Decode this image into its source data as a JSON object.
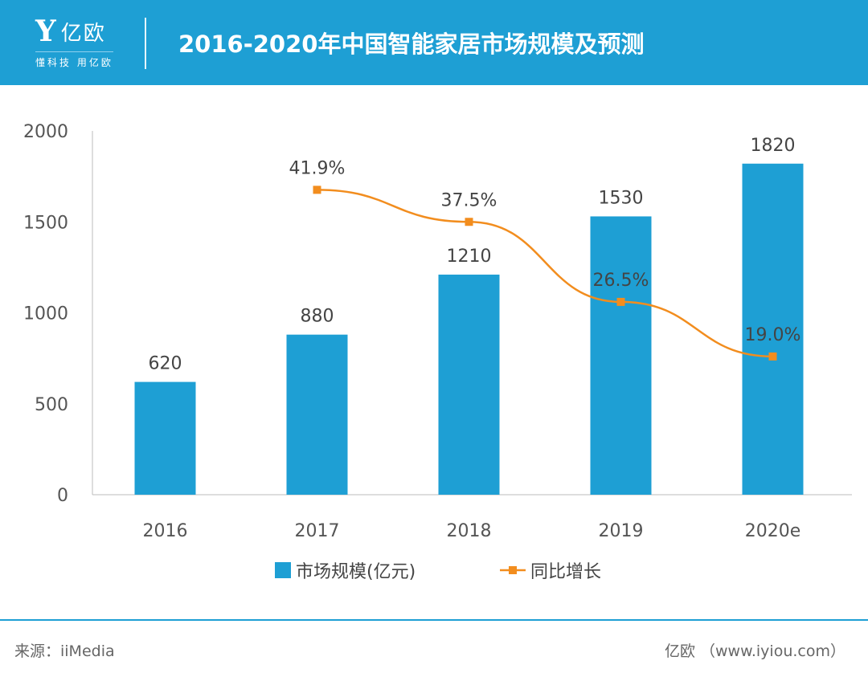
{
  "header": {
    "logo_text": "亿欧",
    "logo_tagline": "懂科技 用亿欧",
    "title": "2016-2020年中国智能家居市场规模及预测"
  },
  "footer": {
    "source": "来源：iiMedia",
    "site": "亿欧 （www.iyiou.com）"
  },
  "colors": {
    "bar": "#1e9fd4",
    "line": "#f28d1e",
    "header": "#1e9fd4"
  },
  "chart_data": {
    "type": "bar+line",
    "categories": [
      "2016",
      "2017",
      "2018",
      "2019",
      "2020e"
    ],
    "y_ticks": [
      "0",
      "500",
      "1000",
      "1500",
      "2000"
    ],
    "ylim": [
      0,
      2000
    ],
    "y2lim": [
      0,
      50
    ],
    "grid": false,
    "legend_placement": "bottom",
    "series": [
      {
        "name": "市场规模(亿元)",
        "type": "bar",
        "values": [
          620,
          880,
          1210,
          1530,
          1820
        ],
        "labels": [
          "620",
          "880",
          "1210",
          "1530",
          "1820"
        ]
      },
      {
        "name": "同比增长",
        "type": "line",
        "axis": "secondary",
        "values": [
          null,
          41.9,
          37.5,
          26.5,
          19.0
        ],
        "labels": [
          "",
          "41.9%",
          "37.5%",
          "26.5%",
          "19.0%"
        ]
      }
    ]
  }
}
